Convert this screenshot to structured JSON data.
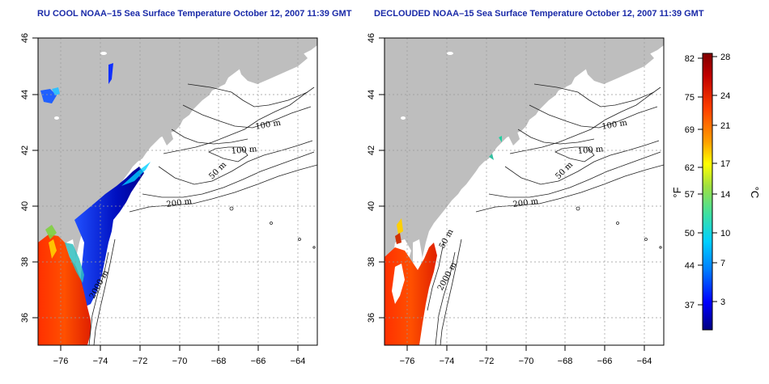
{
  "panels": [
    {
      "title": "RU COOL NOAA–15 Sea Surface Temperature October 12, 2007 11:39 GMT",
      "contour_labels": [
        "100 m",
        "100 m",
        "50 m",
        "200 m",
        "2000 m"
      ]
    },
    {
      "title": "DECLOUDED NOAA–15 Sea Surface Temperature October 12, 2007 11:39 GMT",
      "contour_labels": [
        "100 m",
        "100 m",
        "50 m",
        "200 m",
        "50 m",
        "2000 m"
      ]
    }
  ],
  "axes": {
    "x_ticks": [
      "−76",
      "−74",
      "−72",
      "−70",
      "−68",
      "−66",
      "−64"
    ],
    "y_ticks": [
      "46",
      "44",
      "42",
      "40",
      "38",
      "36"
    ]
  },
  "colorbar": {
    "fahrenheit_unit": "°F",
    "celsius_unit": "°C",
    "fahrenheit_ticks": [
      "82",
      "75",
      "69",
      "62",
      "57",
      "50",
      "44",
      "37"
    ],
    "celsius_ticks": [
      "28",
      "24",
      "21",
      "17",
      "14",
      "10",
      "7",
      "3"
    ],
    "colors": [
      "#000080",
      "#0000ff",
      "#0080ff",
      "#00d0ff",
      "#40e0a0",
      "#a0e040",
      "#ffff00",
      "#ffa000",
      "#ff4000",
      "#c00000",
      "#800000"
    ]
  },
  "map_colors": {
    "land": "#bebebe",
    "water": "#ffffff",
    "grid": "#999999"
  }
}
